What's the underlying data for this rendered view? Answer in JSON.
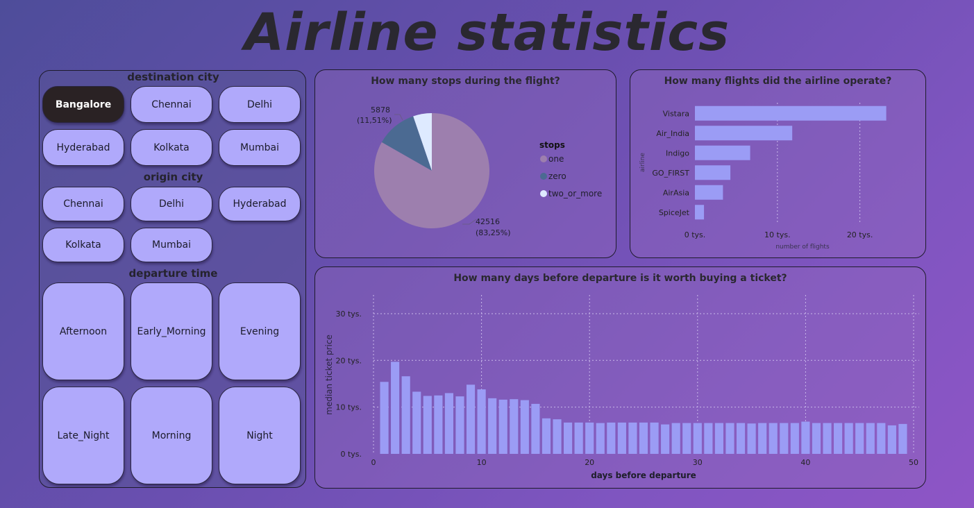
{
  "title": "Airline statistics",
  "slicers": {
    "destination": {
      "label": "destination city",
      "items": [
        "Bangalore",
        "Chennai",
        "Delhi",
        "Hyderabad",
        "Kolkata",
        "Mumbai"
      ],
      "selected": "Bangalore"
    },
    "origin": {
      "label": "origin city",
      "items": [
        "Chennai",
        "Delhi",
        "Hyderabad",
        "Kolkata",
        "Mumbai"
      ]
    },
    "departure": {
      "label": "departure time",
      "items": [
        "Afternoon",
        "Early_Morning",
        "Evening",
        "Late_Night",
        "Morning",
        "Night"
      ]
    }
  },
  "colors": {
    "tile": "#b0a9fb",
    "tile_selected": "#2a2224",
    "bar": "#9b9cf5",
    "pie_one": "#9d7fae",
    "pie_zero": "#4b6a92",
    "pie_two": "#deeaff"
  },
  "chart_data": [
    {
      "type": "pie",
      "title": "How many stops during the flight?",
      "legend_title": "stops",
      "legend_position": "right",
      "slices": [
        {
          "label": "one",
          "value": 42516,
          "percent_label": "(83,25%)"
        },
        {
          "label": "zero",
          "value": 5878,
          "percent_label": "(11,51%)"
        },
        {
          "label": "two_or_more",
          "value": 2676
        }
      ]
    },
    {
      "type": "bar",
      "orientation": "horizontal",
      "title": "How many flights did the airline operate?",
      "xlabel": "number of flights",
      "ylabel": "airline",
      "categories": [
        "Vistara",
        "Air_India",
        "Indigo",
        "GO_FIRST",
        "AirAsia",
        "SpiceJet"
      ],
      "values": [
        23200,
        11800,
        6700,
        4300,
        3400,
        1100
      ],
      "xlim": [
        0,
        26600
      ],
      "xticks": [
        {
          "value": 0,
          "label": "0 tys."
        },
        {
          "value": 10000,
          "label": "10 tys."
        },
        {
          "value": 20000,
          "label": "20 tys."
        }
      ],
      "grid": true
    },
    {
      "type": "bar",
      "title": "How many days before departure is it worth buying a ticket?",
      "xlabel": "days before departure",
      "ylabel": "median ticket price",
      "x": [
        1,
        2,
        3,
        4,
        5,
        6,
        7,
        8,
        9,
        10,
        11,
        12,
        13,
        14,
        15,
        16,
        17,
        18,
        19,
        20,
        21,
        22,
        23,
        24,
        25,
        26,
        27,
        28,
        29,
        30,
        31,
        32,
        33,
        34,
        35,
        36,
        37,
        38,
        39,
        40,
        41,
        42,
        43,
        44,
        45,
        46,
        47,
        48,
        49
      ],
      "values": [
        15400,
        19700,
        16600,
        13300,
        12400,
        12500,
        13000,
        12300,
        14800,
        13800,
        11900,
        11600,
        11700,
        11500,
        10700,
        7600,
        7400,
        6700,
        6700,
        6700,
        6600,
        6700,
        6700,
        6700,
        6700,
        6700,
        6300,
        6600,
        6600,
        6600,
        6600,
        6600,
        6600,
        6600,
        6500,
        6600,
        6600,
        6600,
        6600,
        6900,
        6600,
        6600,
        6600,
        6600,
        6600,
        6600,
        6600,
        6100,
        6400
      ],
      "xlim": [
        0,
        50
      ],
      "ylim": [
        0,
        34000
      ],
      "xticks": [
        0,
        10,
        20,
        30,
        40,
        50
      ],
      "yticks": [
        {
          "value": 0,
          "label": "0 tys."
        },
        {
          "value": 10000,
          "label": "10 tys."
        },
        {
          "value": 20000,
          "label": "20 tys."
        },
        {
          "value": 30000,
          "label": "30 tys."
        }
      ],
      "grid": true
    }
  ]
}
